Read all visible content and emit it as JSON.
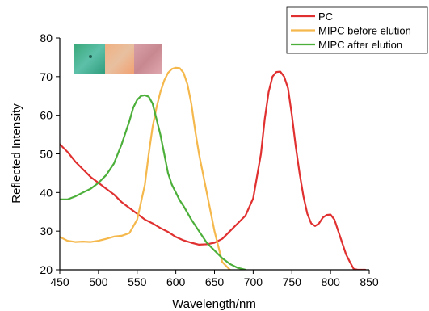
{
  "chart_data": {
    "type": "line",
    "title": "",
    "xlabel": "Wavelength/nm",
    "ylabel": "Reflected Intensity",
    "xlim": [
      450,
      850
    ],
    "ylim": [
      20,
      80
    ],
    "xticks": [
      "450",
      "500",
      "550",
      "600",
      "650",
      "700",
      "750",
      "800",
      "850"
    ],
    "yticks": [
      "20",
      "30",
      "40",
      "50",
      "60",
      "70",
      "80"
    ],
    "grid": false,
    "legend_position": "top-right",
    "inset_image": "color swatch photographs (cyan-green, orange, pink)",
    "series": [
      {
        "name": "PC",
        "color": "#e03030",
        "x": [
          450,
          460,
          470,
          480,
          490,
          500,
          510,
          520,
          530,
          540,
          550,
          560,
          570,
          580,
          590,
          600,
          610,
          620,
          630,
          640,
          650,
          660,
          670,
          680,
          690,
          700,
          710,
          715,
          720,
          725,
          730,
          735,
          740,
          745,
          750,
          755,
          760,
          765,
          770,
          775,
          780,
          785,
          790,
          795,
          800,
          805,
          810,
          815,
          820,
          825,
          830,
          835,
          840,
          845
        ],
        "y": [
          52.5,
          50.5,
          48,
          46,
          44,
          42.5,
          41,
          39.5,
          37.5,
          36,
          34.5,
          33,
          32,
          30.8,
          29.8,
          28.5,
          27.6,
          27,
          26.5,
          26.6,
          27,
          28,
          30,
          32,
          34,
          38.5,
          50,
          59,
          66,
          70,
          71.2,
          71.3,
          70,
          67,
          60,
          52,
          45,
          39,
          34.5,
          32,
          31.3,
          32,
          33.5,
          34.2,
          34.3,
          33,
          30,
          27,
          24,
          22,
          20.2,
          20,
          20,
          20
        ]
      },
      {
        "name": "MIPC before elution",
        "color": "#f5b84c",
        "x": [
          450,
          460,
          470,
          480,
          490,
          500,
          510,
          520,
          530,
          540,
          550,
          560,
          565,
          570,
          575,
          580,
          585,
          590,
          595,
          600,
          605,
          610,
          615,
          620,
          625,
          630,
          640,
          650,
          660,
          670
        ],
        "y": [
          28.5,
          27.5,
          27.2,
          27.3,
          27.2,
          27.5,
          28,
          28.6,
          28.8,
          29.5,
          33,
          42,
          50,
          57,
          62,
          66,
          69,
          71,
          72,
          72.3,
          72.2,
          71,
          68,
          63,
          56,
          50,
          40,
          30,
          22,
          20
        ]
      },
      {
        "name": "MIPC after elution",
        "color": "#4caf3a",
        "x": [
          450,
          460,
          470,
          480,
          490,
          500,
          510,
          520,
          530,
          540,
          545,
          550,
          555,
          560,
          565,
          570,
          575,
          580,
          585,
          590,
          595,
          600,
          605,
          610,
          620,
          630,
          640,
          650,
          660,
          670,
          680,
          690
        ],
        "y": [
          38.2,
          38.2,
          39,
          40,
          41,
          42.5,
          44.5,
          47.5,
          52.5,
          58.5,
          62,
          64,
          65,
          65.2,
          64.8,
          63,
          59,
          55,
          50,
          45,
          42,
          40,
          38,
          36.5,
          33,
          30,
          27,
          25,
          23,
          21.5,
          20.5,
          20
        ]
      }
    ]
  }
}
